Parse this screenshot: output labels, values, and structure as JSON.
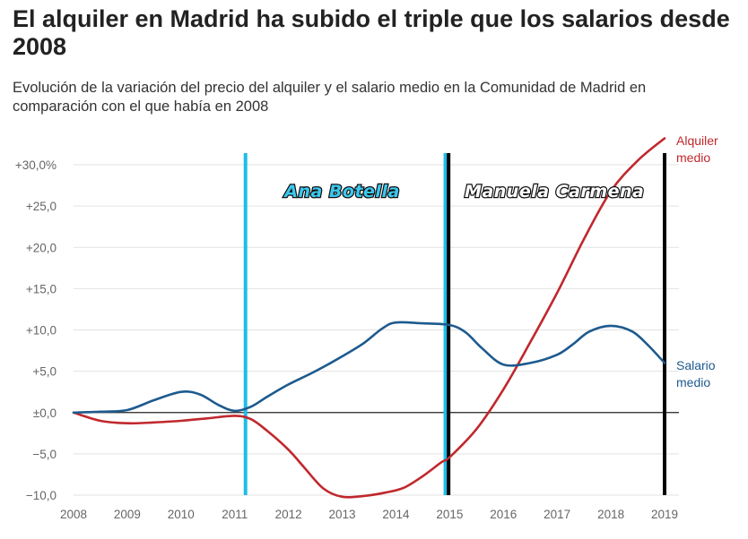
{
  "title": "El alquiler en Madrid ha subido el triple que los salarios desde 2008",
  "subtitle": "Evolución de la variación del precio del alquiler y el salario medio en la Comunidad de Madrid en comparación con el que había en 2008",
  "chart_data": {
    "type": "line",
    "x_ticks": [
      "2008",
      "2009",
      "2010",
      "2011",
      "2012",
      "2013",
      "2014",
      "2015",
      "2016",
      "2017",
      "2018",
      "2019"
    ],
    "y_ticks": [
      "+30,0%",
      "+25,0",
      "+20,0",
      "+15,0",
      "+10,0",
      "+5,0",
      "±0,0",
      "−5,0",
      "−10,0"
    ],
    "y_tick_values": [
      30,
      25,
      20,
      15,
      10,
      5,
      0,
      -5,
      -10
    ],
    "xlim": [
      2008,
      2019
    ],
    "ylim": [
      -10,
      30
    ],
    "grid": true,
    "series": [
      {
        "name": "Alquiler medio",
        "label_lines": [
          "Alquiler",
          "medio"
        ],
        "color": "#c0282d",
        "points": [
          [
            2008,
            0
          ],
          [
            2008.5,
            -1.0
          ],
          [
            2009,
            -1.3
          ],
          [
            2009.5,
            -1.2
          ],
          [
            2010,
            -1.0
          ],
          [
            2010.5,
            -0.7
          ],
          [
            2011,
            -0.4
          ],
          [
            2011.3,
            -0.8
          ],
          [
            2011.6,
            -2.2
          ],
          [
            2012,
            -4.5
          ],
          [
            2012.3,
            -6.7
          ],
          [
            2012.65,
            -9.2
          ],
          [
            2013,
            -10.2
          ],
          [
            2013.4,
            -10.1
          ],
          [
            2013.8,
            -9.7
          ],
          [
            2014.15,
            -9.1
          ],
          [
            2014.5,
            -7.7
          ],
          [
            2014.85,
            -6.0
          ],
          [
            2015,
            -5.4
          ],
          [
            2015.5,
            -2.0
          ],
          [
            2016,
            2.8
          ],
          [
            2016.5,
            8.5
          ],
          [
            2017,
            14.5
          ],
          [
            2017.5,
            21.0
          ],
          [
            2018,
            26.8
          ],
          [
            2018.5,
            30.5
          ],
          [
            2019,
            33.2
          ]
        ]
      },
      {
        "name": "Salario medio",
        "label_lines": [
          "Salario",
          "medio"
        ],
        "color": "#1d5a8e",
        "points": [
          [
            2008,
            0
          ],
          [
            2008.5,
            0.1
          ],
          [
            2009,
            0.3
          ],
          [
            2009.5,
            1.5
          ],
          [
            2010,
            2.5
          ],
          [
            2010.35,
            2.2
          ],
          [
            2010.7,
            0.9
          ],
          [
            2011,
            0.2
          ],
          [
            2011.3,
            0.7
          ],
          [
            2011.6,
            1.9
          ],
          [
            2012,
            3.4
          ],
          [
            2012.5,
            5.0
          ],
          [
            2013,
            6.8
          ],
          [
            2013.4,
            8.4
          ],
          [
            2013.75,
            10.2
          ],
          [
            2014,
            10.9
          ],
          [
            2014.5,
            10.8
          ],
          [
            2015,
            10.6
          ],
          [
            2015.3,
            9.7
          ],
          [
            2015.6,
            7.8
          ],
          [
            2016,
            5.8
          ],
          [
            2016.5,
            6.0
          ],
          [
            2017,
            7.0
          ],
          [
            2017.3,
            8.3
          ],
          [
            2017.6,
            9.8
          ],
          [
            2018,
            10.5
          ],
          [
            2018.4,
            9.8
          ],
          [
            2018.7,
            8.1
          ],
          [
            2019,
            6.0
          ]
        ]
      }
    ],
    "annotations": [
      {
        "label": "Ana Botella",
        "fill": "#3cc8ee",
        "line_color": "#1fbde8",
        "lines_at": [
          2011.2,
          2014.92
        ],
        "label_x": 2013.0
      },
      {
        "label": "Manuela Carmena",
        "fill": "#ffffff",
        "line_color": "#000000",
        "lines_at": [
          2014.98,
          2019
        ],
        "label_x": 2016.95
      }
    ]
  }
}
